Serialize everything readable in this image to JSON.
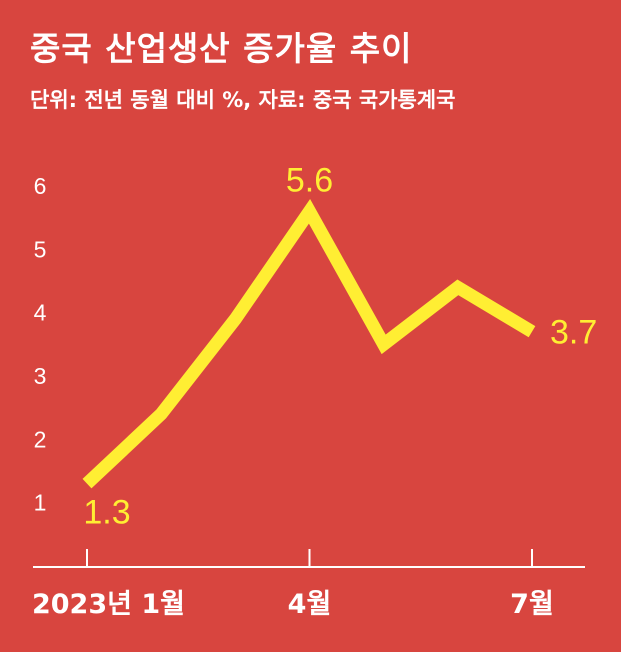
{
  "title": "중국 산업생산 증가율 추이",
  "subtitle": "단위: 전년 동월 대비 %, 자료: 중국 국가통계국",
  "colors": {
    "background": "#d8453f",
    "line": "#ffee33",
    "text": "#ffffff"
  },
  "chart_data": {
    "type": "line",
    "x": [
      "2023-01",
      "2023-02",
      "2023-03",
      "2023-04",
      "2023-05",
      "2023-06",
      "2023-07"
    ],
    "series": [
      {
        "values": [
          1.3,
          2.4,
          3.9,
          5.6,
          3.5,
          4.4,
          3.7
        ]
      }
    ],
    "xtick_labels": [
      {
        "index": 0,
        "label": "2023년 1월"
      },
      {
        "index": 3,
        "label": "4월"
      },
      {
        "index": 6,
        "label": "7월"
      }
    ],
    "yticks": [
      1,
      2,
      3,
      4,
      5,
      6
    ],
    "ylim": [
      0.3,
      6.6
    ],
    "data_labels": [
      {
        "index": 0,
        "text": "1.3"
      },
      {
        "index": 3,
        "text": "5.6"
      },
      {
        "index": 6,
        "text": "3.7"
      }
    ],
    "grid": false
  }
}
